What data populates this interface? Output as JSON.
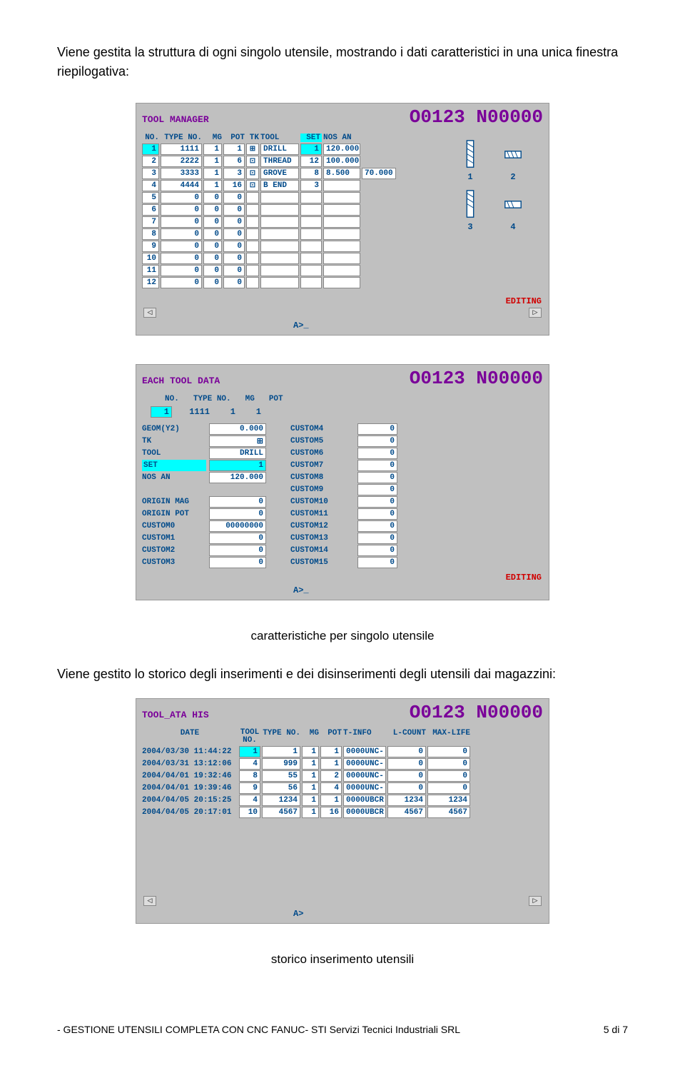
{
  "intro": "Viene gestita la struttura di ogni singolo utensile, mostrando i dati caratteristici in una unica finestra riepilogativa:",
  "screen1": {
    "title": "TOOL MANAGER",
    "prog": "O0123 N00000",
    "headers": [
      "NO.",
      "TYPE NO.",
      "MG",
      "POT",
      "TK",
      "TOOL",
      "SET",
      "NOS AN"
    ],
    "rows": [
      {
        "no": "1",
        "type": "1111",
        "mg": "1",
        "pot": "1",
        "tki": "⊞",
        "tool": "DRILL",
        "set": "1",
        "nos": "120.000",
        "extra": ""
      },
      {
        "no": "2",
        "type": "2222",
        "mg": "1",
        "pot": "6",
        "tki": "⊡",
        "tool": "THREAD",
        "set": "12",
        "nos": "100.000",
        "extra": ""
      },
      {
        "no": "3",
        "type": "3333",
        "mg": "1",
        "pot": "3",
        "tki": "⊡",
        "tool": "GROVE",
        "set": "8",
        "nos": "8.500",
        "extra": "70.000"
      },
      {
        "no": "4",
        "type": "4444",
        "mg": "1",
        "pot": "16",
        "tki": "⊡",
        "tool": "B END",
        "set": "3",
        "nos": "",
        "extra": ""
      },
      {
        "no": "5",
        "type": "0",
        "mg": "0",
        "pot": "0",
        "tki": "",
        "tool": "",
        "set": "",
        "nos": "",
        "extra": ""
      },
      {
        "no": "6",
        "type": "0",
        "mg": "0",
        "pot": "0",
        "tki": "",
        "tool": "",
        "set": "",
        "nos": "",
        "extra": ""
      },
      {
        "no": "7",
        "type": "0",
        "mg": "0",
        "pot": "0",
        "tki": "",
        "tool": "",
        "set": "",
        "nos": "",
        "extra": ""
      },
      {
        "no": "8",
        "type": "0",
        "mg": "0",
        "pot": "0",
        "tki": "",
        "tool": "",
        "set": "",
        "nos": "",
        "extra": ""
      },
      {
        "no": "9",
        "type": "0",
        "mg": "0",
        "pot": "0",
        "tki": "",
        "tool": "",
        "set": "",
        "nos": "",
        "extra": ""
      },
      {
        "no": "10",
        "type": "0",
        "mg": "0",
        "pot": "0",
        "tki": "",
        "tool": "",
        "set": "",
        "nos": "",
        "extra": ""
      },
      {
        "no": "11",
        "type": "0",
        "mg": "0",
        "pot": "0",
        "tki": "",
        "tool": "",
        "set": "",
        "nos": "",
        "extra": ""
      },
      {
        "no": "12",
        "type": "0",
        "mg": "0",
        "pot": "0",
        "tki": "",
        "tool": "",
        "set": "",
        "nos": "",
        "extra": ""
      }
    ],
    "tool_labels": [
      "1",
      "2",
      "3",
      "4"
    ],
    "editing": "EDITING",
    "prompt": "A>_"
  },
  "screen2": {
    "title": "EACH TOOL DATA",
    "prog": "O0123 N00000",
    "head_labels": [
      "NO.",
      "TYPE NO.",
      "MG",
      "POT"
    ],
    "head_vals": [
      "1",
      "1111",
      "1",
      "1"
    ],
    "left": [
      {
        "label": "GEOM(Y2)",
        "val": "0.000",
        "cyan": false
      },
      {
        "label": "TK",
        "val": "⊞",
        "cyan": false
      },
      {
        "label": "TOOL",
        "val": "DRILL",
        "cyan": false
      },
      {
        "label": "SET",
        "val": "1",
        "cyan": true
      },
      {
        "label": "NOS AN",
        "val": "120.000",
        "cyan": false
      },
      {
        "label": "",
        "val": "",
        "cyan": false
      },
      {
        "label": "ORIGIN MAG",
        "val": "0",
        "cyan": false
      },
      {
        "label": "ORIGIN POT",
        "val": "0",
        "cyan": false
      },
      {
        "label": "CUSTOM0",
        "val": "00000000",
        "cyan": false
      },
      {
        "label": "CUSTOM1",
        "val": "0",
        "cyan": false
      },
      {
        "label": "CUSTOM2",
        "val": "0",
        "cyan": false
      },
      {
        "label": "CUSTOM3",
        "val": "0",
        "cyan": false
      }
    ],
    "right": [
      {
        "label": "CUSTOM4",
        "val": "0"
      },
      {
        "label": "CUSTOM5",
        "val": "0"
      },
      {
        "label": "CUSTOM6",
        "val": "0"
      },
      {
        "label": "CUSTOM7",
        "val": "0"
      },
      {
        "label": "CUSTOM8",
        "val": "0"
      },
      {
        "label": "CUSTOM9",
        "val": "0"
      },
      {
        "label": "CUSTOM10",
        "val": "0"
      },
      {
        "label": "CUSTOM11",
        "val": "0"
      },
      {
        "label": "CUSTOM12",
        "val": "0"
      },
      {
        "label": "CUSTOM13",
        "val": "0"
      },
      {
        "label": "CUSTOM14",
        "val": "0"
      },
      {
        "label": "CUSTOM15",
        "val": "0"
      }
    ],
    "editing": "EDITING",
    "prompt": "A>_"
  },
  "caption1": "caratteristiche per singolo  utensile",
  "midtext": "Viene gestito lo storico degli inserimenti e dei disinserimenti degli utensili dai magazzini:",
  "screen3": {
    "title": "TOOL_ATA HIS",
    "prog": "O0123 N00000",
    "headers": [
      "DATE",
      "TOOL NO.",
      "TYPE NO.",
      "MG",
      "POT",
      "T-INFO",
      "L-COUNT",
      "MAX-LIFE"
    ],
    "rows": [
      {
        "date": "2004/03/30 11:44:22",
        "tno": "1",
        "type": "1",
        "mg": "1",
        "pot": "1",
        "tinfo": "0000UNC-",
        "lc": "0",
        "ml": "0"
      },
      {
        "date": "2004/03/31 13:12:06",
        "tno": "4",
        "type": "999",
        "mg": "1",
        "pot": "1",
        "tinfo": "0000UNC-",
        "lc": "0",
        "ml": "0"
      },
      {
        "date": "2004/04/01 19:32:46",
        "tno": "8",
        "type": "55",
        "mg": "1",
        "pot": "2",
        "tinfo": "0000UNC-",
        "lc": "0",
        "ml": "0"
      },
      {
        "date": "2004/04/01 19:39:46",
        "tno": "9",
        "type": "56",
        "mg": "1",
        "pot": "4",
        "tinfo": "0000UNC-",
        "lc": "0",
        "ml": "0"
      },
      {
        "date": "2004/04/05 20:15:25",
        "tno": "4",
        "type": "1234",
        "mg": "1",
        "pot": "1",
        "tinfo": "0000UBCR",
        "lc": "1234",
        "ml": "1234"
      },
      {
        "date": "2004/04/05 20:17:01",
        "tno": "10",
        "type": "4567",
        "mg": "1",
        "pot": "16",
        "tinfo": "0000UBCR",
        "lc": "4567",
        "ml": "4567"
      }
    ],
    "prompt": "A>"
  },
  "caption2": "storico inserimento utensili",
  "footer_left": "- GESTIONE UTENSILI COMPLETA CON CNC FANUC-   STI Servizi Tecnici Industriali SRL",
  "footer_right": "5 di  7",
  "colors": {
    "screen_bg": "#c0c0c0",
    "blue": "#004a8a",
    "purple": "#7a0099",
    "red": "#d00000",
    "cyan": "#00ffff"
  }
}
